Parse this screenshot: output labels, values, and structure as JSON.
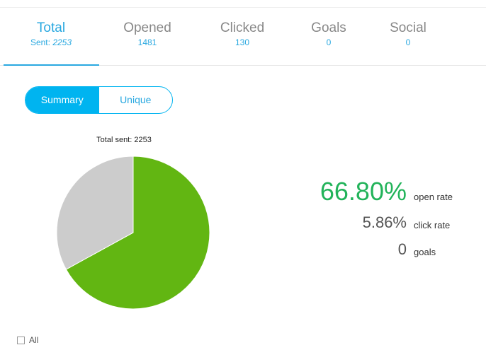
{
  "tabs": [
    {
      "label": "Total",
      "sub_label": "Sent:",
      "sub_value": "2253"
    },
    {
      "label": "Opened",
      "sub_value": "1481"
    },
    {
      "label": "Clicked",
      "sub_value": "130"
    },
    {
      "label": "Goals",
      "sub_value": "0"
    },
    {
      "label": "Social",
      "sub_value": "0"
    }
  ],
  "toggle": [
    "Summary",
    "Unique"
  ],
  "chart_data": {
    "type": "pie",
    "title": "Total sent: 2253",
    "values": [
      67,
      33
    ],
    "colors": [
      "#62b612",
      "#cccccc"
    ]
  },
  "stats": [
    {
      "value": "66.80%",
      "label": "open rate"
    },
    {
      "value": "5.86%",
      "label": "click rate"
    },
    {
      "value": "0",
      "label": "goals"
    }
  ],
  "filter": "All"
}
